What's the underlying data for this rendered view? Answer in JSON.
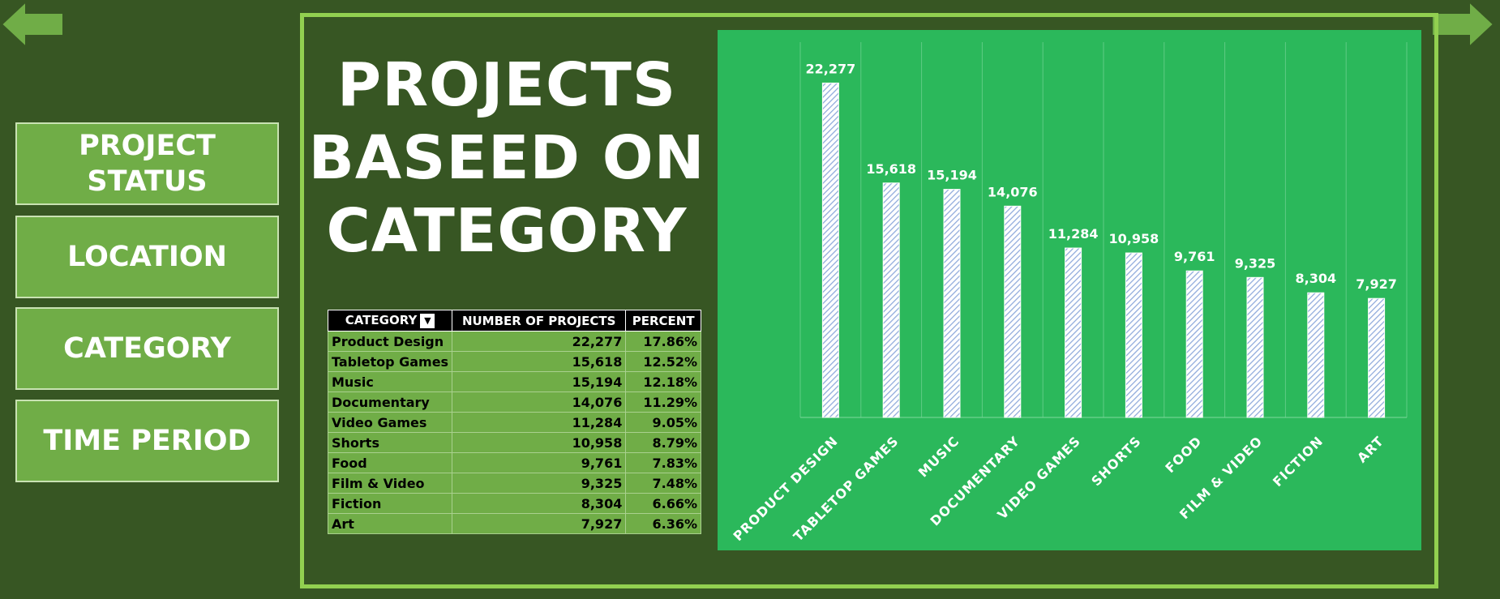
{
  "nav": {
    "buttons": [
      {
        "line1": "PROJECT",
        "line2": "STATUS"
      },
      {
        "line1": "LOCATION",
        "line2": ""
      },
      {
        "line1": "CATEGORY",
        "line2": ""
      },
      {
        "line1": "TIME PERIOD",
        "line2": ""
      }
    ]
  },
  "title": {
    "line1": "PROJECTS",
    "line2": "BASEED ON",
    "line3": "CATEGORY"
  },
  "table": {
    "headers": [
      "CATEGORY",
      "NUMBER OF PROJECTS",
      "PERCENT"
    ],
    "filter_icon": "filter-icon",
    "rows": [
      {
        "category": "Product Design",
        "projects": "22,277",
        "percent": "17.86%"
      },
      {
        "category": "Tabletop Games",
        "projects": "15,618",
        "percent": "12.52%"
      },
      {
        "category": "Music",
        "projects": "15,194",
        "percent": "12.18%"
      },
      {
        "category": "Documentary",
        "projects": "14,076",
        "percent": "11.29%"
      },
      {
        "category": "Video Games",
        "projects": "11,284",
        "percent": "9.05%"
      },
      {
        "category": "Shorts",
        "projects": "10,958",
        "percent": "8.79%"
      },
      {
        "category": "Food",
        "projects": "9,761",
        "percent": "7.83%"
      },
      {
        "category": "Film & Video",
        "projects": "9,325",
        "percent": "7.48%"
      },
      {
        "category": "Fiction",
        "projects": "8,304",
        "percent": "6.66%"
      },
      {
        "category": "Art",
        "projects": "7,927",
        "percent": "6.36%"
      }
    ]
  },
  "colors": {
    "background": "#375623",
    "frame": "#92D050",
    "button": "#70AD47",
    "chart_bg": "#2BB85B",
    "bar_hatch": "#8EA9DB"
  },
  "icons": {
    "back": "left-arrow-icon",
    "forward": "right-arrow-icon"
  },
  "chart_data": {
    "type": "bar",
    "categories": [
      "PRODUCT DESIGN",
      "TABLETOP GAMES",
      "MUSIC",
      "DOCUMENTARY",
      "VIDEO GAMES",
      "SHORTS",
      "FOOD",
      "FILM & VIDEO",
      "FICTION",
      "ART"
    ],
    "values": [
      22277,
      15618,
      15194,
      14076,
      11284,
      10958,
      9761,
      9325,
      8304,
      7927
    ],
    "value_labels": [
      "22,277",
      "15,618",
      "15,194",
      "14,076",
      "11,284",
      "10,958",
      "9,761",
      "9,325",
      "8,304",
      "7,927"
    ],
    "title": "",
    "xlabel": "",
    "ylabel": "",
    "ylim": [
      0,
      25000
    ],
    "grid": "vertical",
    "legend": "none"
  }
}
